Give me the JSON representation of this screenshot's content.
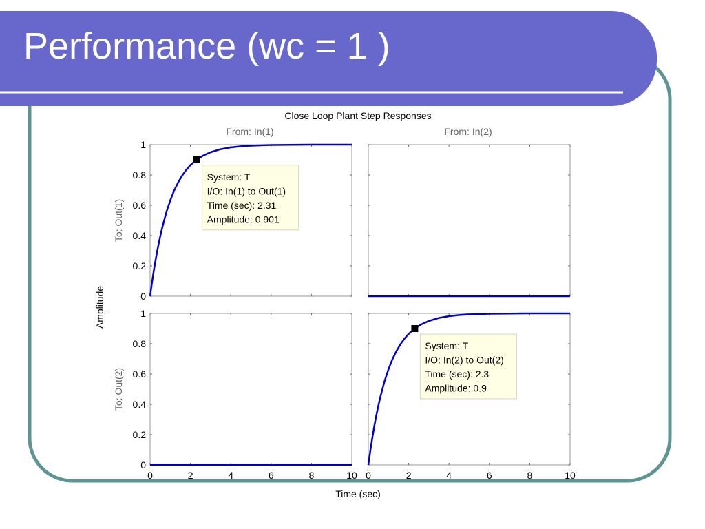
{
  "slide": {
    "title": "Performance (wc = 1 )"
  },
  "colors": {
    "title_bar": "#6868cc",
    "frame_border": "#5f9494",
    "curve": "#0000cc",
    "datatip_bg": "#ffffe6"
  },
  "chart_data": {
    "type": "line",
    "title": "Close Loop Plant Step Responses",
    "xlabel": "Time (sec)",
    "ylabel": "Amplitude",
    "column_labels": [
      "From: In(1)",
      "From: In(2)"
    ],
    "row_labels": [
      "To: Out(1)",
      "To: Out(2)"
    ],
    "xlim": [
      0,
      10
    ],
    "ylim": [
      0,
      1
    ],
    "xticks": [
      0,
      2,
      4,
      6,
      8,
      10
    ],
    "yticks": [
      0,
      0.2,
      0.4,
      0.6,
      0.8,
      1
    ],
    "ytick_labels": [
      "0",
      "0.2",
      "0.4",
      "0.6",
      "0.8",
      "1"
    ],
    "grid": false,
    "panels": [
      {
        "row": 0,
        "col": 0,
        "series": [
          {
            "x": [
              0,
              0.1,
              0.2,
              0.3,
              0.4,
              0.5,
              0.6,
              0.8,
              1.0,
              1.2,
              1.4,
              1.6,
              1.8,
              2.0,
              2.31,
              2.6,
              3.0,
              3.5,
              4.0,
              4.5,
              5.0,
              6.0,
              7.0,
              8.0,
              9.0,
              10.0
            ],
            "y": [
              0,
              0.095,
              0.181,
              0.259,
              0.33,
              0.393,
              0.451,
              0.551,
              0.632,
              0.699,
              0.753,
              0.798,
              0.835,
              0.865,
              0.901,
              0.926,
              0.95,
              0.97,
              0.982,
              0.989,
              0.993,
              0.998,
              0.999,
              1.0,
              1.0,
              1.0
            ]
          }
        ],
        "datatip": {
          "x": 2.31,
          "y": 0.901,
          "lines": [
            "System: T",
            "I/O: In(1) to Out(1)",
            "Time (sec): 2.31",
            "Amplitude: 0.901"
          ]
        }
      },
      {
        "row": 0,
        "col": 1,
        "series": [
          {
            "x": [
              0,
              10
            ],
            "y": [
              0,
              0
            ]
          }
        ]
      },
      {
        "row": 1,
        "col": 0,
        "series": [
          {
            "x": [
              0,
              10
            ],
            "y": [
              0,
              0
            ]
          }
        ]
      },
      {
        "row": 1,
        "col": 1,
        "series": [
          {
            "x": [
              0,
              0.1,
              0.2,
              0.3,
              0.4,
              0.5,
              0.6,
              0.8,
              1.0,
              1.2,
              1.4,
              1.6,
              1.8,
              2.0,
              2.3,
              2.6,
              3.0,
              3.5,
              4.0,
              4.5,
              5.0,
              6.0,
              7.0,
              8.0,
              9.0,
              10.0
            ],
            "y": [
              0,
              0.095,
              0.181,
              0.259,
              0.33,
              0.393,
              0.451,
              0.551,
              0.632,
              0.699,
              0.753,
              0.798,
              0.835,
              0.865,
              0.9,
              0.926,
              0.95,
              0.97,
              0.982,
              0.989,
              0.993,
              0.998,
              0.999,
              1.0,
              1.0,
              1.0
            ]
          }
        ],
        "datatip": {
          "x": 2.3,
          "y": 0.9,
          "lines": [
            "System: T",
            "I/O: In(2) to Out(2)",
            "Time (sec): 2.3",
            "Amplitude: 0.9"
          ]
        }
      }
    ]
  }
}
